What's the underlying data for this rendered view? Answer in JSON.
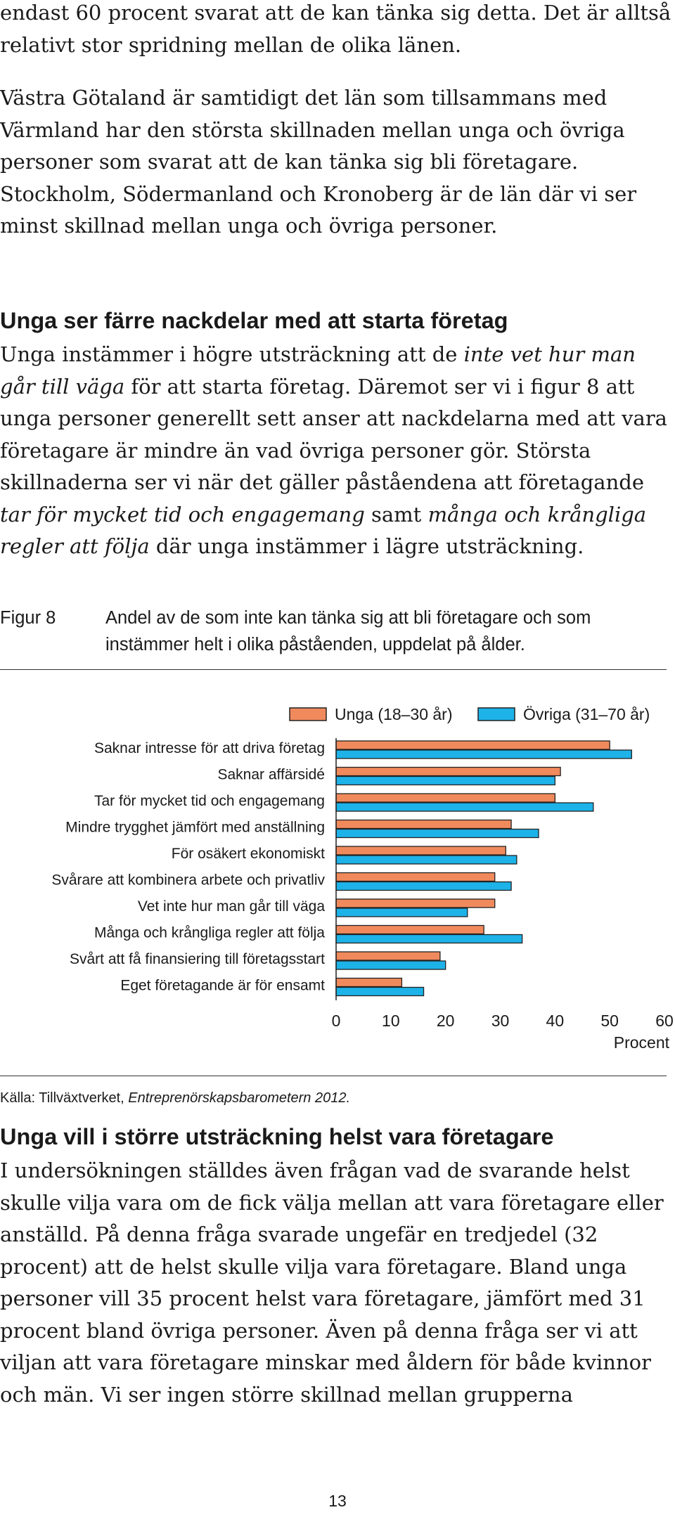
{
  "intro": {
    "p1": "endast 60 procent svarat att de kan tänka sig detta. Det är alltså relativt stor spridning mellan de olika länen.",
    "p2": "Västra Götaland är samtidigt det län som tillsammans med Värmland har den största skillnaden mellan unga och övriga personer som svarat att de kan tänka sig bli företagare. Stockholm, Södermanland och Kronoberg är de län där vi ser minst skillnad mellan unga och övriga personer."
  },
  "section1": {
    "heading": "Unga ser färre nackdelar med att starta företag",
    "body": {
      "s1": "Unga instämmer i högre utsträckning att de ",
      "s1_italic": "inte vet hur man går till väga",
      "s2": " för att starta företag. Däremot ser vi i figur 8 att unga personer generellt sett anser att nackdelarna med att vara företagare är mindre än vad övriga personer gör. Största skillnaderna ser vi när det gäller påståendena att företagande ",
      "s2_italic": "tar för mycket tid och engagemang",
      "s3": " samt ",
      "s3_italic": "många och krångliga regler att följa",
      "s4": " där unga instämmer i lägre utsträckning."
    }
  },
  "figure": {
    "label": "Figur 8",
    "caption": "Andel av de som inte kan tänka sig att bli företagare och som instämmer helt i olika påståenden, uppdelat på ålder.",
    "source_prefix": "Källa: Tillväxtverket, ",
    "source_italic": "Entreprenörskapsbarometern 2012."
  },
  "chart_data": {
    "type": "bar",
    "orientation": "horizontal",
    "categories": [
      "Saknar intresse för att driva företag",
      "Saknar affärsidé",
      "Tar för mycket tid och engagemang",
      "Mindre trygghet jämfört med anställning",
      "För osäkert ekonomiskt",
      "Svårare att kombinera arbete och privatliv",
      "Vet inte hur man går till väga",
      "Många och krångliga regler att följa",
      "Svårt att få finansiering till företagsstart",
      "Eget företagande är för ensamt"
    ],
    "series": [
      {
        "name": "Unga (18–30 år)",
        "color": "#f08a5d",
        "values": [
          50,
          41,
          40,
          32,
          31,
          29,
          29,
          27,
          19,
          12
        ]
      },
      {
        "name": "Övriga (31–70 år)",
        "color": "#1db2e8",
        "values": [
          54,
          40,
          47,
          37,
          33,
          32,
          24,
          34,
          20,
          16
        ]
      }
    ],
    "xlim": [
      0,
      60
    ],
    "xticks": [
      "0",
      "10",
      "20",
      "30",
      "40",
      "50",
      "60"
    ],
    "xlabel": "Procent",
    "legend_position": "top-right",
    "grid": false
  },
  "section2": {
    "heading": "Unga vill i större utsträckning helst vara företagare",
    "body": "I undersökningen ställdes även frågan vad de svarande helst skulle vilja vara om de fick välja mellan att vara företagare eller anställd. På denna fråga svarade ungefär en tredjedel (32 procent) att de helst skulle vilja vara företagare. Bland unga personer vill 35 procent helst vara företagare, jämfört med 31 procent bland övriga personer. Även på denna fråga ser vi att viljan att vara företagare minskar med åldern för både kvinnor och män. Vi ser ingen större skillnad mellan grupperna"
  },
  "page_number": "13"
}
